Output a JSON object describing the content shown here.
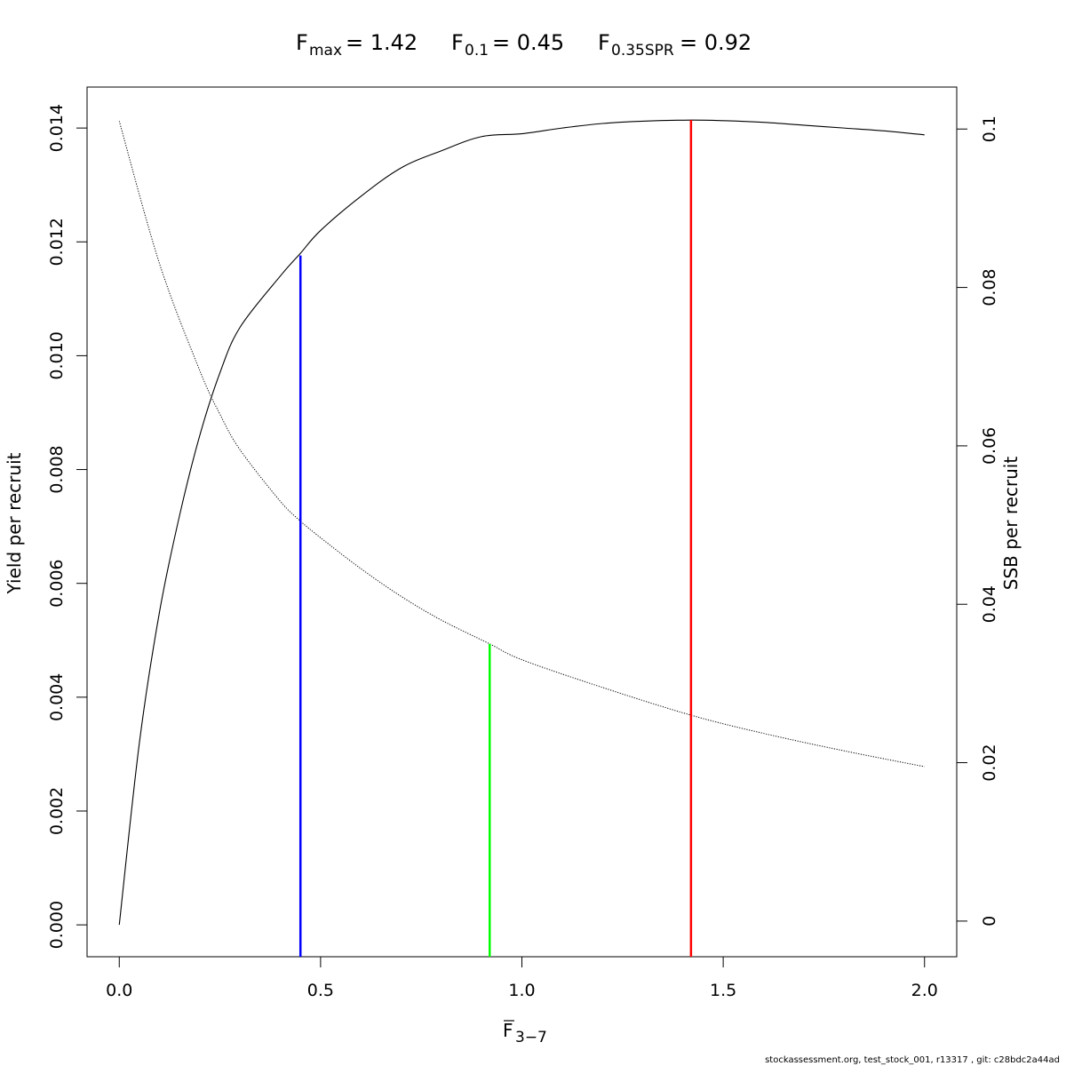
{
  "title": {
    "fmax_label": "F",
    "fmax_sub": "max",
    "fmax_value": "= 1.42",
    "f01_label": "F",
    "f01_sub": "0.1",
    "f01_value": "= 0.45",
    "fspr_label": "F",
    "fspr_sub": "0.35SPR",
    "fspr_value": "= 0.92"
  },
  "footer": "stockassessment.org, test_stock_001, r13317 , git: c28bdc2a44ad",
  "chart_data": {
    "type": "line",
    "xlabel_main": "F",
    "xlabel_sub": "3−7",
    "ylabel_left": "Yield per recruit",
    "ylabel_right": "SSB per recruit",
    "xlim": [
      -0.08,
      2.08
    ],
    "ylim_left": [
      -0.00056,
      0.01472
    ],
    "ylim_right": [
      -0.0045,
      0.1053
    ],
    "x_ticks": [
      "0.0",
      "0.5",
      "1.0",
      "1.5",
      "2.0"
    ],
    "x_tick_values": [
      0,
      0.5,
      1.0,
      1.5,
      2.0
    ],
    "y_left_ticks": [
      "0.000",
      "0.002",
      "0.004",
      "0.006",
      "0.008",
      "0.010",
      "0.012",
      "0.014"
    ],
    "y_left_tick_values": [
      0,
      0.002,
      0.004,
      0.006,
      0.008,
      0.01,
      0.012,
      0.014
    ],
    "y_right_ticks": [
      "0",
      "0.02",
      "0.04",
      "0.06",
      "0.08",
      "0.1"
    ],
    "y_right_tick_values": [
      0,
      0.02,
      0.04,
      0.06,
      0.08,
      0.1
    ],
    "series": [
      {
        "axis": "left",
        "style": "solid",
        "color": "#000000",
        "x": [
          0,
          0.05,
          0.1,
          0.15,
          0.2,
          0.25,
          0.3,
          0.4,
          0.45,
          0.5,
          0.6,
          0.7,
          0.8,
          0.9,
          1.0,
          1.1,
          1.2,
          1.3,
          1.42,
          1.5,
          1.6,
          1.7,
          1.8,
          1.9,
          2.0
        ],
        "y": [
          0,
          0.0032,
          0.0055,
          0.0072,
          0.0086,
          0.0097,
          0.0105,
          0.0114,
          0.0118,
          0.0122,
          0.0128,
          0.0133,
          0.0136,
          0.01385,
          0.0139,
          0.014,
          0.01408,
          0.01412,
          0.01414,
          0.01413,
          0.0141,
          0.01405,
          0.014,
          0.01395,
          0.01388
        ]
      },
      {
        "axis": "right",
        "style": "dotted",
        "color": "#000000",
        "x": [
          0,
          0.1,
          0.2,
          0.25,
          0.3,
          0.4,
          0.45,
          0.5,
          0.6,
          0.7,
          0.8,
          0.92,
          1.0,
          1.2,
          1.42,
          1.6,
          1.8,
          2.0
        ],
        "y": [
          0.101,
          0.083,
          0.0695,
          0.064,
          0.0595,
          0.053,
          0.0505,
          0.0484,
          0.0445,
          0.041,
          0.038,
          0.035,
          0.033,
          0.0295,
          0.026,
          0.0237,
          0.0215,
          0.0195
        ]
      }
    ],
    "reference_lines": [
      {
        "name": "F0.1",
        "x": 0.45,
        "y_left": 0.01176,
        "color": "#0000ff"
      },
      {
        "name": "F0.35SPR",
        "x": 0.92,
        "y_right": 0.035,
        "color": "#00ff00"
      },
      {
        "name": "Fmax",
        "x": 1.42,
        "y_left": 0.01414,
        "color": "#ff0000"
      }
    ]
  }
}
